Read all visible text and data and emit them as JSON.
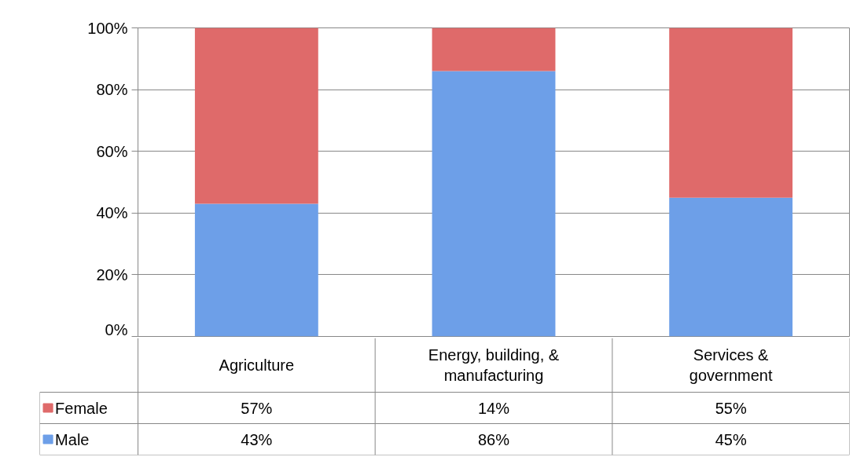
{
  "chart_data": {
    "type": "bar",
    "stacked": true,
    "categories": [
      "Agriculture",
      "Energy, building, & manufacturing",
      "Services & government"
    ],
    "series": [
      {
        "name": "Male",
        "color": "#6d9fe8",
        "values": [
          43,
          86,
          45
        ],
        "value_labels": [
          "43%",
          "86%",
          "45%"
        ]
      },
      {
        "name": "Female",
        "color": "#df6a6a",
        "values": [
          57,
          14,
          55
        ],
        "value_labels": [
          "57%",
          "14%",
          "55%"
        ]
      }
    ],
    "ylim": [
      0,
      100
    ],
    "yticks": [
      {
        "value": 0,
        "label": "0%"
      },
      {
        "value": 20,
        "label": "20%"
      },
      {
        "value": 40,
        "label": "40%"
      },
      {
        "value": 60,
        "label": "60%"
      },
      {
        "value": 80,
        "label": "80%"
      },
      {
        "value": 100,
        "label": "100%"
      }
    ],
    "grid": "y",
    "legend": "bottom"
  }
}
